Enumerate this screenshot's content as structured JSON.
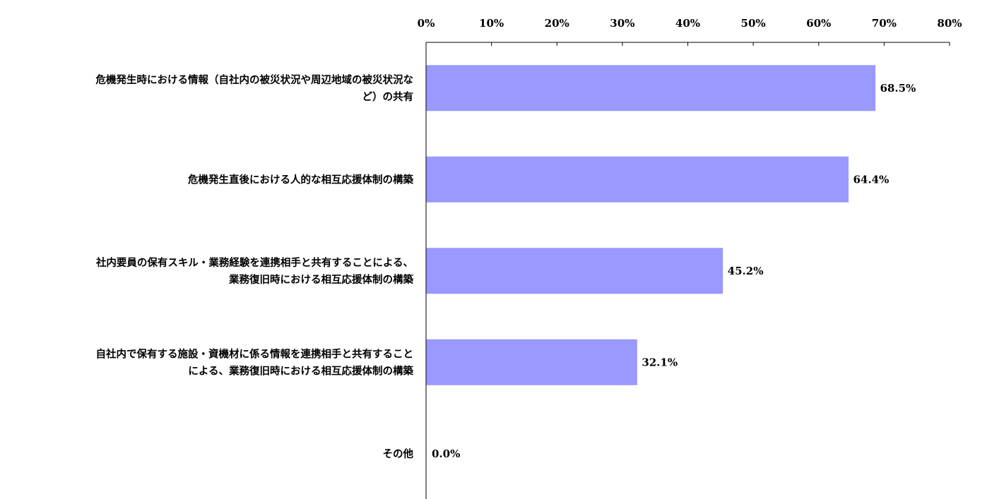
{
  "chart_data": {
    "type": "bar",
    "orientation": "horizontal",
    "categories": [
      [
        "危機発生時における情報（自社内の被災状況や周辺地域の被災状況な",
        "ど）の共有"
      ],
      [
        "危機発生直後における人的な相互応援体制の構築"
      ],
      [
        "社内要員の保有スキル・業務経験を連携相手と共有することによる、",
        "業務復旧時における相互応援体制の構築"
      ],
      [
        "自社内で保有する施設・資機材に係る情報を連携相手と共有すること",
        "による、業務復旧時における相互応援体制の構築"
      ],
      [
        "その他"
      ]
    ],
    "values": [
      68.5,
      64.4,
      45.2,
      32.1,
      0.0
    ],
    "value_labels": [
      "68.5%",
      "64.4%",
      "45.2%",
      "32.1%",
      "0.0%"
    ],
    "xlim": [
      0,
      80
    ],
    "x_ticks": [
      0,
      10,
      20,
      30,
      40,
      50,
      60,
      70,
      80
    ],
    "x_tick_labels": [
      "0%",
      "10%",
      "20%",
      "30%",
      "40%",
      "50%",
      "60%",
      "70%",
      "80%"
    ],
    "x_axis_position": "top",
    "grid": false,
    "legend": "none",
    "bar_color": "#9999ff",
    "bar_edge_color": "#9999ff",
    "axis_color": "#000000"
  }
}
